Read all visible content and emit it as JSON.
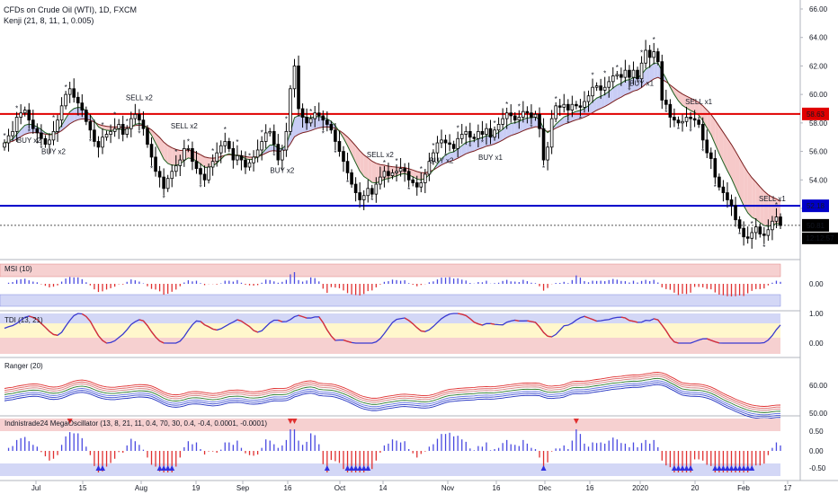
{
  "header": {
    "title": "CFDs on Crude Oil (WTI), 1D, FXCM",
    "indicator": "Kenji (21, 8, 11, 1, 0.005)"
  },
  "price_tags": {
    "red_line": "58.63",
    "blue_line": "52.18",
    "last": "50.81",
    "countdown": "12:12:57"
  },
  "signals": [
    {
      "text": "BUY x2",
      "xi": 6,
      "pane": "buy"
    },
    {
      "text": "BUY x2",
      "xi": 12,
      "pane": "buy"
    },
    {
      "text": "SELL x2",
      "xi": 33,
      "pane": "sell"
    },
    {
      "text": "SELL x2",
      "xi": 44,
      "pane": "sell"
    },
    {
      "text": "BUY x2",
      "xi": 68,
      "pane": "buy"
    },
    {
      "text": "SELL x2",
      "xi": 92,
      "pane": "sell"
    },
    {
      "text": "BUY x2",
      "xi": 107,
      "pane": "buy"
    },
    {
      "text": "BUY x1",
      "xi": 119,
      "pane": "buy"
    },
    {
      "text": "BUY x1",
      "xi": 156,
      "pane": "buy"
    },
    {
      "text": "SELL x1",
      "xi": 170,
      "pane": "sell"
    },
    {
      "text": "SELL x1",
      "xi": 188,
      "pane": "sell"
    }
  ],
  "panes": {
    "msi": {
      "label": "MSI (10)",
      "ticks": [
        "0.00"
      ]
    },
    "tdi": {
      "label": "TDI (13, 21)",
      "ticks": [
        "1.00",
        "0.00"
      ]
    },
    "ranger": {
      "label": "Ranger (20)",
      "ticks": [
        "60.00",
        "50.00"
      ]
    },
    "mega": {
      "label": "Indnistrade24 MegaOscillator (13, 8, 21, 11, 0.4, 70, 30, 0.4, -0.4, 0.0001, -0.0001)",
      "ticks": [
        "0.50",
        "0.00",
        "-0.50"
      ]
    }
  },
  "colors": {
    "up": "#ffffff",
    "down": "#000000",
    "red_line": "#e00000",
    "blue_line": "#0000c8",
    "buy_text": "#4a4ae0",
    "sell_text": "#e05050",
    "cloud_up": "#c9cdf5",
    "cloud_down": "#f6c9c9"
  },
  "chart_data": [
    {
      "type": "candlestick",
      "title": "CFDs on Crude Oil (WTI), 1D, FXCM",
      "y_ticks": [
        "66.00",
        "64.00",
        "62.00",
        "60.00",
        "58.00",
        "56.00",
        "54.00",
        "52.00"
      ],
      "ylim": [
        48.5,
        66.6
      ],
      "x_ticks": [
        "Jul",
        "15",
        "Aug",
        "19",
        "Sep",
        "16",
        "Oct",
        "14",
        "Nov",
        "16",
        "Dec",
        "16",
        "2020",
        "20",
        "Feb",
        "17"
      ],
      "horizontal_lines": [
        58.63,
        52.18,
        50.81
      ],
      "close": [
        56.6,
        57.1,
        57.4,
        58.4,
        58.7,
        58.9,
        58.2,
        57.6,
        57.3,
        56.9,
        56.5,
        56.8,
        57.4,
        58.2,
        59.2,
        60.0,
        60.4,
        59.8,
        59.4,
        58.9,
        58.1,
        57.5,
        56.7,
        56.3,
        57.0,
        57.2,
        57.4,
        57.6,
        57.9,
        57.2,
        57.6,
        58.3,
        58.6,
        58.2,
        57.6,
        56.5,
        55.6,
        54.6,
        54.2,
        53.4,
        54.1,
        54.6,
        55.0,
        55.4,
        56.2,
        56.2,
        55.3,
        54.8,
        54.4,
        54.0,
        54.9,
        55.3,
        55.9,
        56.4,
        56.7,
        56.2,
        55.4,
        55.7,
        55.4,
        54.9,
        55.2,
        55.6,
        56.1,
        56.7,
        57.3,
        57.4,
        56.5,
        55.4,
        56.1,
        57.4,
        60.4,
        62.0,
        59.0,
        58.4,
        58.0,
        58.3,
        58.7,
        58.5,
        58.2,
        57.9,
        57.5,
        56.7,
        56.0,
        55.3,
        54.5,
        53.7,
        53.1,
        52.6,
        52.9,
        53.4,
        53.0,
        53.7,
        54.2,
        54.6,
        54.3,
        54.5,
        54.6,
        54.8,
        54.6,
        54.0,
        53.8,
        53.5,
        53.8,
        54.4,
        55.3,
        55.9,
        56.6,
        56.8,
        56.6,
        56.5,
        56.2,
        56.9,
        57.2,
        57.4,
        57.0,
        56.9,
        57.4,
        57.2,
        57.6,
        57.0,
        57.5,
        57.9,
        58.3,
        58.7,
        58.5,
        58.2,
        58.4,
        58.8,
        58.7,
        58.4,
        58.6,
        57.6,
        55.4,
        56.3,
        58.3,
        59.2,
        59.1,
        59.3,
        58.9,
        59.3,
        59.2,
        59.1,
        59.5,
        59.9,
        60.5,
        60.6,
        60.3,
        60.5,
        60.9,
        61.3,
        61.4,
        61.2,
        61.7,
        61.2,
        61.7,
        61.1,
        62.2,
        63.1,
        62.6,
        63.0,
        62.3,
        59.6,
        59.3,
        58.4,
        58.2,
        58.0,
        58.1,
        58.4,
        58.3,
        58.2,
        57.9,
        56.8,
        55.9,
        55.5,
        54.2,
        53.5,
        53.1,
        52.6,
        52.2,
        51.2,
        50.6,
        50.0,
        49.9,
        50.3,
        50.7,
        50.2,
        50.1,
        50.5,
        51.1,
        51.4,
        50.8
      ]
    },
    {
      "type": "bar",
      "title": "MSI (10)",
      "ylim": [
        -1,
        1
      ]
    },
    {
      "type": "line",
      "title": "TDI (13, 21)",
      "ylim": [
        -0.4,
        1.3
      ]
    },
    {
      "type": "line",
      "title": "Ranger (20)",
      "ylim": [
        46,
        66
      ]
    },
    {
      "type": "bar",
      "title": "Indnistrade24 MegaOscillator (13, 8, 21, 11, 0.4, 70, 30, 0.4, -0.4, 0.0001, -0.0001)",
      "ylim": [
        -0.8,
        0.8
      ]
    }
  ]
}
